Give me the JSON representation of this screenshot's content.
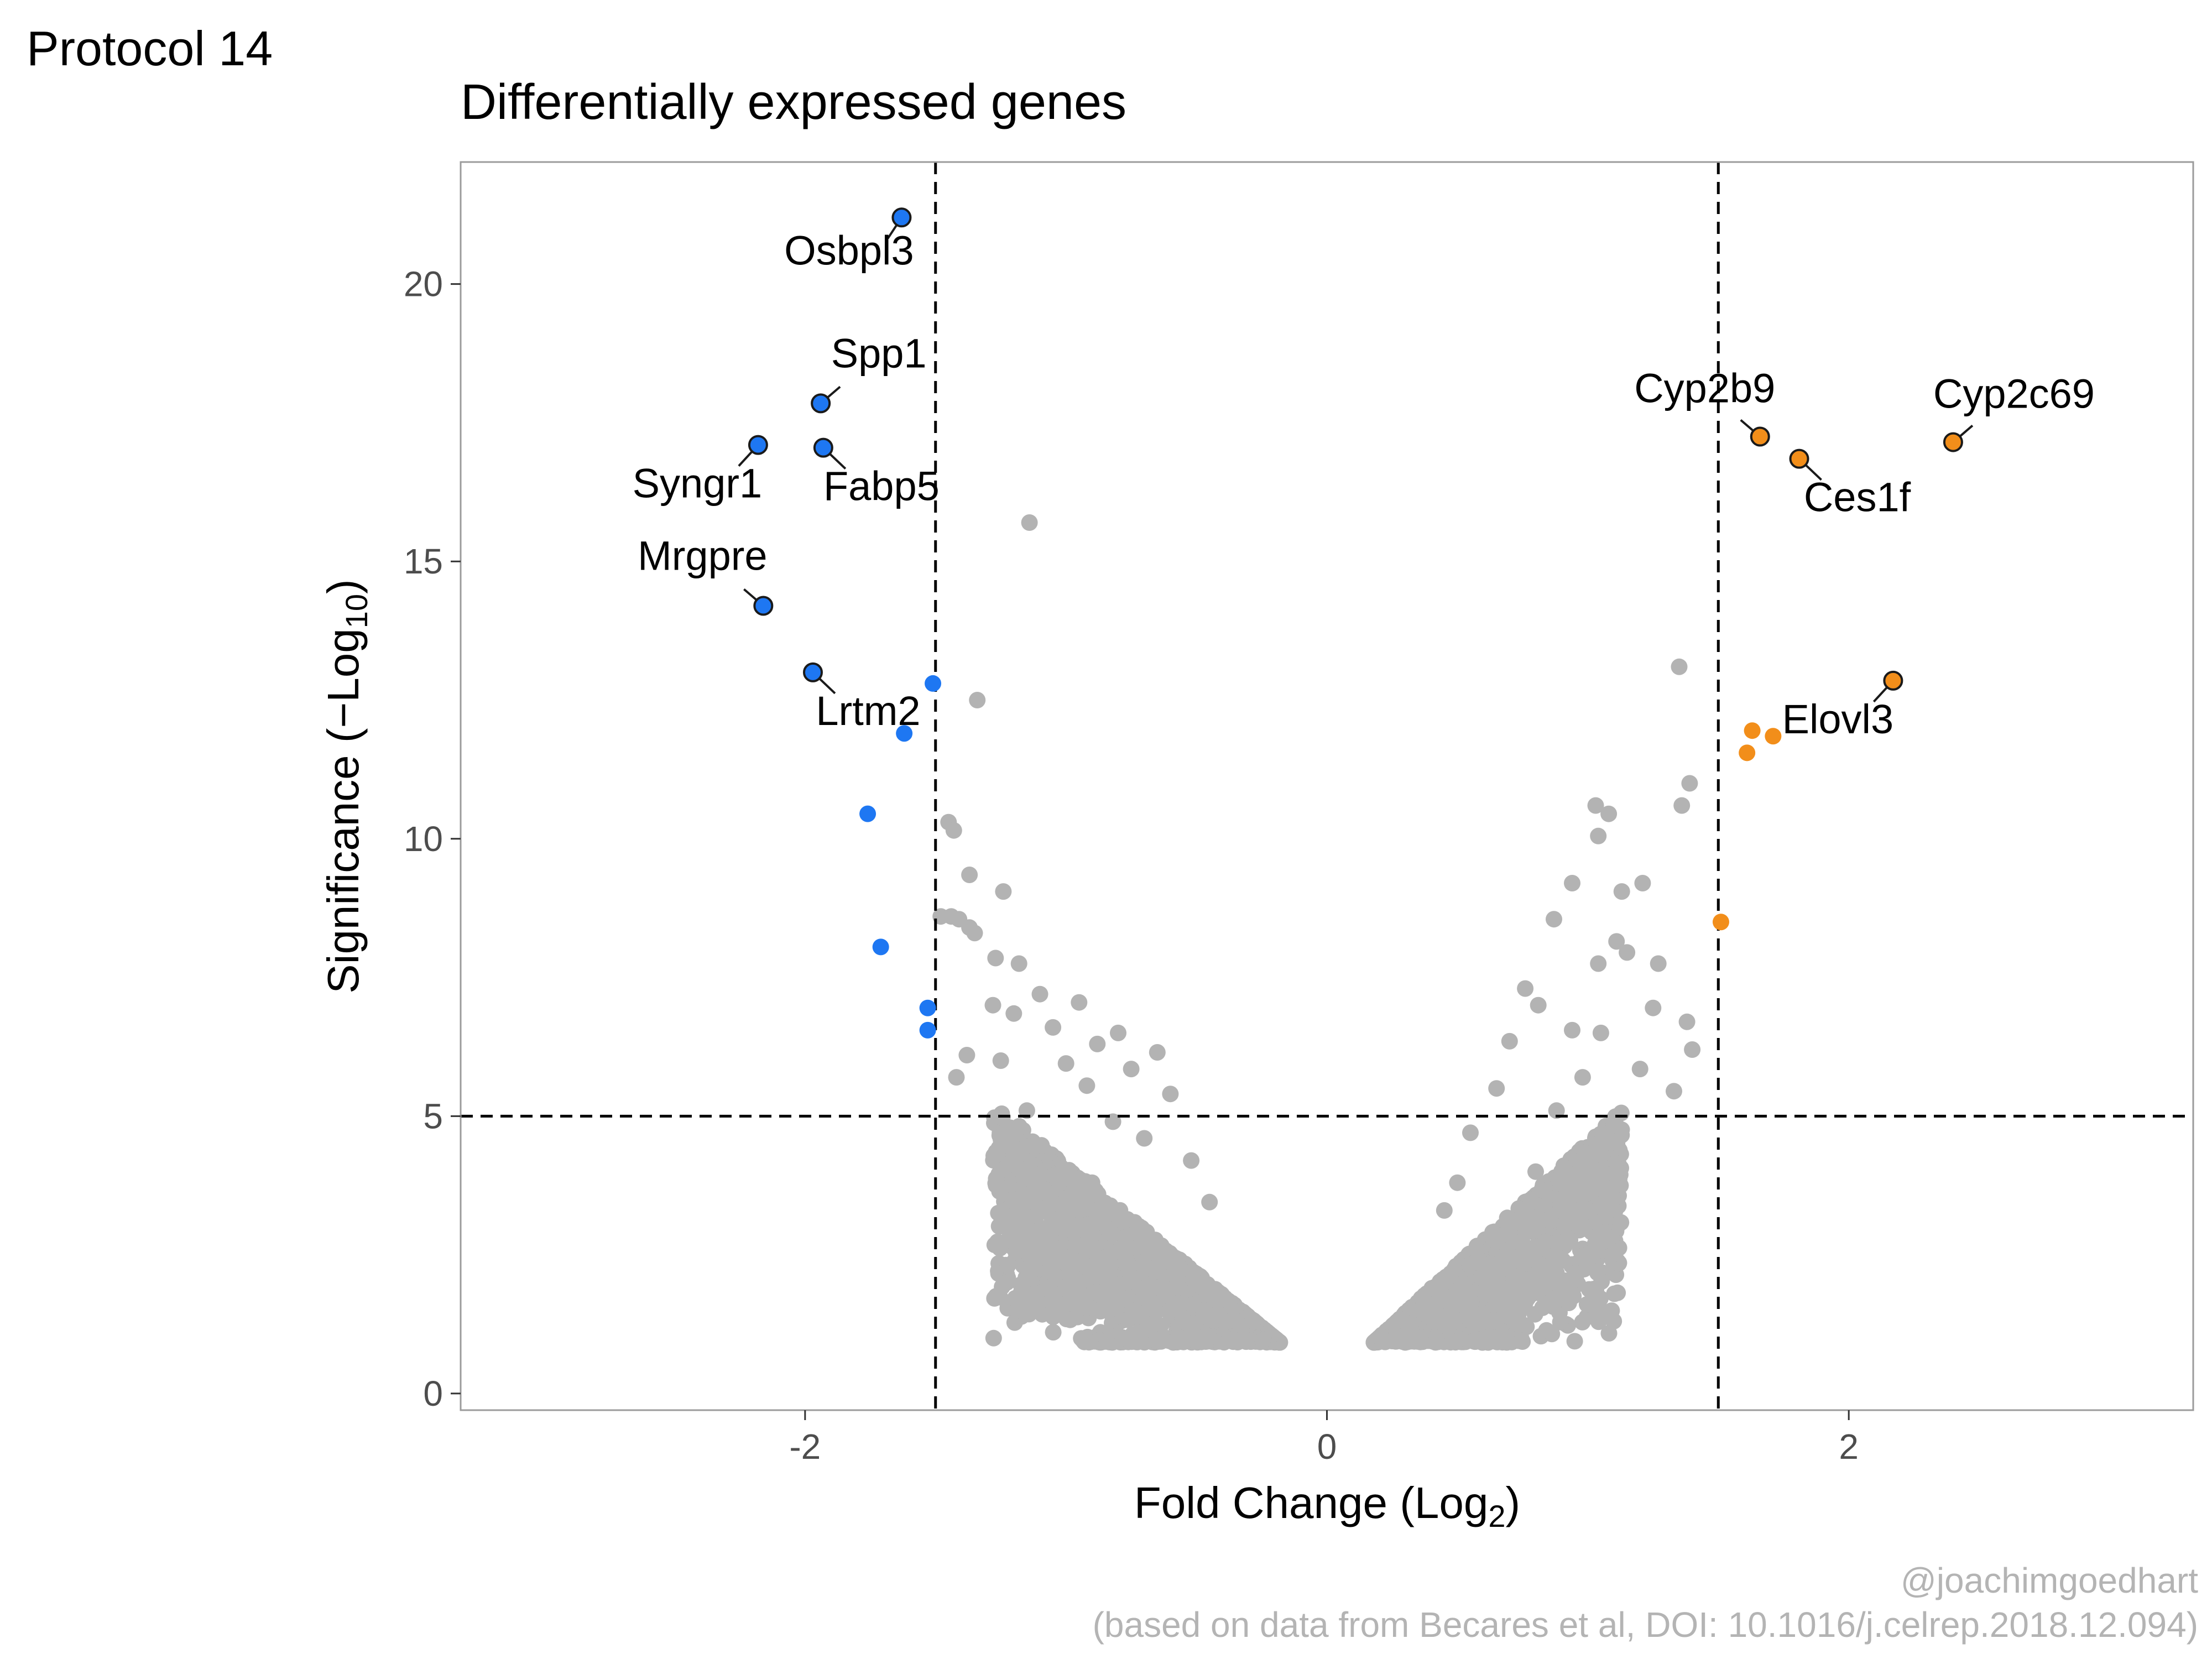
{
  "protocol_label": "Protocol 14",
  "caption": {
    "handle": "@joachimgoedhart",
    "source": "(based on data from Becares et al, DOI: 10.1016/j.celrep.2018.12.094)"
  },
  "chart_data": {
    "type": "scatter",
    "title": "Differentially expressed genes",
    "xlabel": {
      "text": "Fold Change (Log",
      "sub": "2",
      "end": ")"
    },
    "ylabel": {
      "text": "Significance (−Log",
      "sub": "10",
      "end": ")"
    },
    "xlim": [
      -3.32,
      3.32
    ],
    "ylim": [
      -0.3,
      22.2
    ],
    "xticks": [
      -2,
      0,
      2
    ],
    "xtick_labels": [
      "-2",
      "0",
      "2"
    ],
    "yticks": [
      0,
      5,
      10,
      15,
      20
    ],
    "ytick_labels": [
      "0",
      "5",
      "10",
      "15",
      "20"
    ],
    "grid": false,
    "thresholds": {
      "fold_change": 1.5,
      "significance": 5
    },
    "colors": {
      "not_significant": "#b3b3b3",
      "down": "#1e77f2",
      "up": "#f28e1a",
      "outline": "#1a1a1a"
    },
    "labeled_genes": [
      {
        "gene": "Osbpl3",
        "x": -1.63,
        "y": 21.2,
        "dir": "down"
      },
      {
        "gene": "Spp1",
        "x": -1.94,
        "y": 17.85,
        "dir": "down"
      },
      {
        "gene": "Syngr1",
        "x": -2.18,
        "y": 17.1,
        "dir": "down"
      },
      {
        "gene": "Fabp5",
        "x": -1.93,
        "y": 17.05,
        "dir": "down"
      },
      {
        "gene": "Mrgpre",
        "x": -2.16,
        "y": 14.2,
        "dir": "down"
      },
      {
        "gene": "Lrtm2",
        "x": -1.97,
        "y": 13.0,
        "dir": "down"
      },
      {
        "gene": "Cyp2b9",
        "x": 1.66,
        "y": 17.25,
        "dir": "up"
      },
      {
        "gene": "Ces1f",
        "x": 1.81,
        "y": 16.85,
        "dir": "up"
      },
      {
        "gene": "Cyp2c69",
        "x": 2.4,
        "y": 17.15,
        "dir": "up"
      },
      {
        "gene": "Elovl3",
        "x": 2.17,
        "y": 12.85,
        "dir": "up"
      }
    ],
    "significant_points": [
      {
        "x": -1.51,
        "y": 12.8,
        "dir": "down"
      },
      {
        "x": -1.62,
        "y": 11.9,
        "dir": "down"
      },
      {
        "x": -1.76,
        "y": 10.45,
        "dir": "down"
      },
      {
        "x": -1.71,
        "y": 8.05,
        "dir": "down"
      },
      {
        "x": -1.53,
        "y": 6.95,
        "dir": "down"
      },
      {
        "x": -1.53,
        "y": 6.55,
        "dir": "down"
      },
      {
        "x": 1.63,
        "y": 11.95,
        "dir": "up"
      },
      {
        "x": 1.71,
        "y": 11.85,
        "dir": "up"
      },
      {
        "x": 1.61,
        "y": 11.55,
        "dir": "up"
      },
      {
        "x": 1.51,
        "y": 8.5,
        "dir": "up"
      }
    ],
    "nonsignificant_points": [
      [
        -1.14,
        15.7
      ],
      [
        -1.34,
        12.5
      ],
      [
        -1.45,
        10.3
      ],
      [
        -1.43,
        10.15
      ],
      [
        -1.37,
        9.35
      ],
      [
        -1.24,
        9.05
      ],
      [
        -1.48,
        8.6
      ],
      [
        -1.44,
        8.6
      ],
      [
        -1.41,
        8.55
      ],
      [
        -1.37,
        8.4
      ],
      [
        -1.35,
        8.3
      ],
      [
        -1.27,
        7.85
      ],
      [
        -1.18,
        7.75
      ],
      [
        -1.28,
        7.0
      ],
      [
        -1.1,
        7.2
      ],
      [
        -0.95,
        7.05
      ],
      [
        -1.2,
        6.85
      ],
      [
        -1.05,
        6.6
      ],
      [
        -0.8,
        6.5
      ],
      [
        -1.38,
        6.1
      ],
      [
        -0.88,
        6.3
      ],
      [
        -1.25,
        6.0
      ],
      [
        -0.65,
        6.15
      ],
      [
        -1.0,
        5.95
      ],
      [
        -0.75,
        5.85
      ],
      [
        -1.42,
        5.7
      ],
      [
        -0.92,
        5.55
      ],
      [
        -0.6,
        5.4
      ],
      [
        -1.15,
        5.1
      ],
      [
        -0.82,
        4.9
      ],
      [
        -0.7,
        4.6
      ],
      [
        -1.2,
        4.3
      ],
      [
        -0.52,
        4.2
      ],
      [
        -0.9,
        3.8
      ],
      [
        -0.45,
        3.45
      ],
      [
        -0.78,
        3.1
      ],
      [
        1.35,
        13.1
      ],
      [
        1.39,
        11.0
      ],
      [
        1.36,
        10.6
      ],
      [
        1.03,
        10.6
      ],
      [
        1.08,
        10.45
      ],
      [
        1.04,
        10.05
      ],
      [
        0.94,
        9.2
      ],
      [
        1.13,
        9.05
      ],
      [
        1.21,
        9.2
      ],
      [
        0.87,
        8.55
      ],
      [
        1.11,
        8.15
      ],
      [
        1.15,
        7.95
      ],
      [
        1.04,
        7.75
      ],
      [
        1.27,
        7.75
      ],
      [
        0.76,
        7.3
      ],
      [
        0.81,
        7.0
      ],
      [
        1.25,
        6.95
      ],
      [
        1.38,
        6.7
      ],
      [
        0.94,
        6.55
      ],
      [
        1.05,
        6.5
      ],
      [
        1.4,
        6.2
      ],
      [
        0.7,
        6.35
      ],
      [
        1.2,
        5.85
      ],
      [
        0.98,
        5.7
      ],
      [
        1.33,
        5.45
      ],
      [
        0.65,
        5.5
      ],
      [
        0.88,
        5.1
      ],
      [
        1.1,
        4.85
      ],
      [
        0.55,
        4.7
      ],
      [
        1.05,
        4.3
      ],
      [
        0.8,
        4.0
      ],
      [
        0.5,
        3.8
      ],
      [
        0.92,
        3.4
      ],
      [
        0.45,
        3.3
      ],
      [
        0.7,
        2.9
      ]
    ]
  }
}
